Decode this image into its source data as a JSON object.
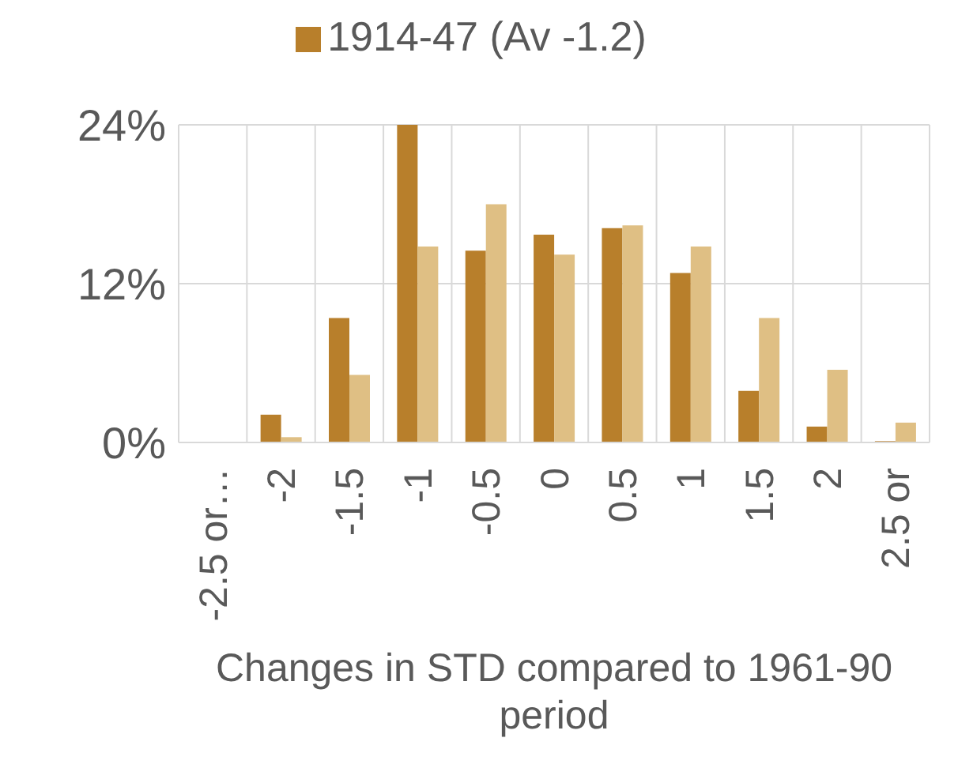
{
  "chart_data": {
    "type": "bar",
    "categories": [
      "-2.5 or…",
      "-2",
      "-1.5",
      "-1",
      "-0.5",
      "0",
      "0.5",
      "1",
      "1.5",
      "2",
      "2.5 or"
    ],
    "series": [
      {
        "name": "1914-47 (Av -1.2)",
        "color": "#b87f2b",
        "values": [
          0,
          2.1,
          9.4,
          24,
          14.5,
          15.7,
          16.2,
          12.8,
          3.9,
          1.2,
          0.1
        ]
      },
      {
        "color": "#dfbf84",
        "values": [
          0,
          0.4,
          5.1,
          14.8,
          18,
          14.2,
          16.4,
          14.8,
          9.4,
          5.5,
          1.5
        ]
      }
    ],
    "xlabel": "Changes in STD compared to 1961-90 period",
    "ylim": [
      0,
      24
    ],
    "yticks": [
      {
        "value": 0,
        "label": "0%"
      },
      {
        "value": 12,
        "label": "12%"
      },
      {
        "value": 24,
        "label": "24%"
      }
    ],
    "grid": true,
    "legend": "top"
  }
}
